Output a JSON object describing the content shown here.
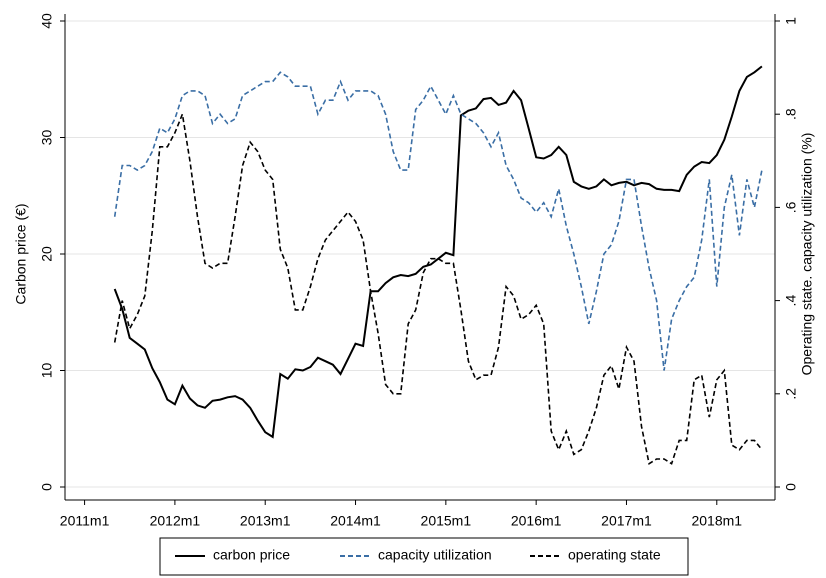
{
  "chart_data": {
    "type": "line",
    "y_label": "Carbon price (€)",
    "y2_label": "Operating state. capacity utilization (%)",
    "x": [
      "2011m5",
      "2011m6",
      "2011m7",
      "2011m8",
      "2011m9",
      "2011m10",
      "2011m11",
      "2011m12",
      "2012m1",
      "2012m2",
      "2012m3",
      "2012m4",
      "2012m5",
      "2012m6",
      "2012m7",
      "2012m8",
      "2012m9",
      "2012m10",
      "2012m11",
      "2012m12",
      "2013m1",
      "2013m2",
      "2013m3",
      "2013m4",
      "2013m5",
      "2013m6",
      "2013m7",
      "2013m8",
      "2013m9",
      "2013m10",
      "2013m11",
      "2013m12",
      "2014m1",
      "2014m2",
      "2014m3",
      "2014m4",
      "2014m5",
      "2014m6",
      "2014m7",
      "2014m8",
      "2014m9",
      "2014m10",
      "2014m11",
      "2014m12",
      "2015m1",
      "2015m2",
      "2015m3",
      "2015m4",
      "2015m5",
      "2015m6",
      "2015m7",
      "2015m8",
      "2015m9",
      "2015m10",
      "2015m11",
      "2015m12",
      "2016m1",
      "2016m2",
      "2016m3",
      "2016m4",
      "2016m5",
      "2016m6",
      "2016m7",
      "2016m8",
      "2016m9",
      "2016m10",
      "2016m11",
      "2016m12",
      "2017m1",
      "2017m2",
      "2017m3",
      "2017m4",
      "2017m5",
      "2017m6",
      "2017m7",
      "2017m8",
      "2017m9",
      "2017m10",
      "2017m11",
      "2017m12",
      "2018m1",
      "2018m2",
      "2018m3",
      "2018m4",
      "2018m5",
      "2018m6",
      "2018m7"
    ],
    "xlim": [
      "2010m10",
      "2018m9"
    ],
    "xticks": [
      "2011m1",
      "2012m1",
      "2013m1",
      "2014m1",
      "2015m1",
      "2016m1",
      "2017m1",
      "2018m1"
    ],
    "ylim": [
      0,
      40
    ],
    "yticks": [
      0,
      10,
      20,
      30,
      40
    ],
    "y2lim": [
      0,
      1
    ],
    "y2ticks": [
      0,
      {
        "value": 0.2,
        "label": ".2"
      },
      {
        "value": 0.4,
        "label": ".4"
      },
      {
        "value": 0.6,
        "label": ".6"
      },
      {
        "value": 0.8,
        "label": ".8"
      },
      1
    ],
    "grid": true,
    "legend": "bottom",
    "series": [
      {
        "name": "carbon price",
        "color": "#000000",
        "dash": false,
        "values": [
          17,
          15.3,
          12.8,
          12.3,
          11.8,
          10.2,
          9,
          7.5,
          7.1,
          8.7,
          7.6,
          7.0,
          6.8,
          7.4,
          7.5,
          7.7,
          7.8,
          7.5,
          6.8,
          5.7,
          4.7,
          4.3,
          9.7,
          9.3,
          10.1,
          10,
          10.3,
          11.1,
          10.8,
          10.5,
          9.7,
          11,
          12.3,
          12.1,
          16.8,
          16.8,
          17.5,
          18,
          18.2,
          18.1,
          18.3,
          18.9,
          19.1,
          19.6,
          20.1,
          19.9,
          31.9,
          32.3,
          32.5,
          33.3,
          33.4,
          32.8,
          33,
          34,
          33.2,
          30.8,
          28.3,
          28.2,
          28.5,
          29.2,
          28.5,
          26.2,
          25.8,
          25.6,
          25.8,
          26.4,
          25.9,
          26.1,
          26.2,
          25.9,
          26.1,
          26,
          25.6,
          25.5,
          25.5,
          25.4,
          26.8,
          27.5,
          27.9,
          27.8,
          28.5,
          29.8,
          31.8,
          34,
          35.2,
          35.6,
          36.1
        ]
      },
      {
        "name": "capacity utilization",
        "color": "#3a6ea5",
        "dash": true,
        "axis": "y2",
        "values": [
          0.58,
          0.69,
          0.69,
          0.68,
          0.69,
          0.72,
          0.77,
          0.76,
          0.79,
          0.84,
          0.85,
          0.85,
          0.84,
          0.78,
          0.8,
          0.78,
          0.79,
          0.84,
          0.85,
          0.86,
          0.87,
          0.87,
          0.89,
          0.88,
          0.86,
          0.86,
          0.86,
          0.8,
          0.83,
          0.83,
          0.87,
          0.83,
          0.85,
          0.85,
          0.85,
          0.84,
          0.8,
          0.72,
          0.68,
          0.68,
          0.81,
          0.83,
          0.86,
          0.83,
          0.8,
          0.84,
          0.8,
          0.79,
          0.78,
          0.76,
          0.73,
          0.76,
          0.69,
          0.66,
          0.62,
          0.61,
          0.59,
          0.61,
          0.58,
          0.64,
          0.56,
          0.5,
          0.43,
          0.35,
          0.42,
          0.5,
          0.52,
          0.57,
          0.66,
          0.66,
          0.56,
          0.47,
          0.4,
          0.25,
          0.36,
          0.4,
          0.43,
          0.45,
          0.53,
          0.66,
          0.43,
          0.6,
          0.67,
          0.54,
          0.66,
          0.6,
          0.68
        ]
      },
      {
        "name": "operating state",
        "color": "#000000",
        "dash": true,
        "axis": "y2",
        "values": [
          0.31,
          0.4,
          0.34,
          0.37,
          0.41,
          0.55,
          0.73,
          0.73,
          0.76,
          0.8,
          0.7,
          0.58,
          0.48,
          0.47,
          0.48,
          0.48,
          0.58,
          0.69,
          0.74,
          0.72,
          0.68,
          0.66,
          0.51,
          0.47,
          0.38,
          0.38,
          0.43,
          0.49,
          0.53,
          0.55,
          0.57,
          0.59,
          0.57,
          0.53,
          0.42,
          0.33,
          0.22,
          0.2,
          0.2,
          0.35,
          0.38,
          0.46,
          0.49,
          0.49,
          0.48,
          0.48,
          0.38,
          0.27,
          0.23,
          0.24,
          0.24,
          0.3,
          0.43,
          0.41,
          0.36,
          0.37,
          0.39,
          0.35,
          0.12,
          0.08,
          0.12,
          0.07,
          0.08,
          0.12,
          0.17,
          0.24,
          0.26,
          0.21,
          0.3,
          0.27,
          0.13,
          0.05,
          0.06,
          0.06,
          0.05,
          0.1,
          0.1,
          0.23,
          0.24,
          0.15,
          0.23,
          0.25,
          0.09,
          0.08,
          0.1,
          0.1,
          0.08
        ]
      }
    ]
  }
}
